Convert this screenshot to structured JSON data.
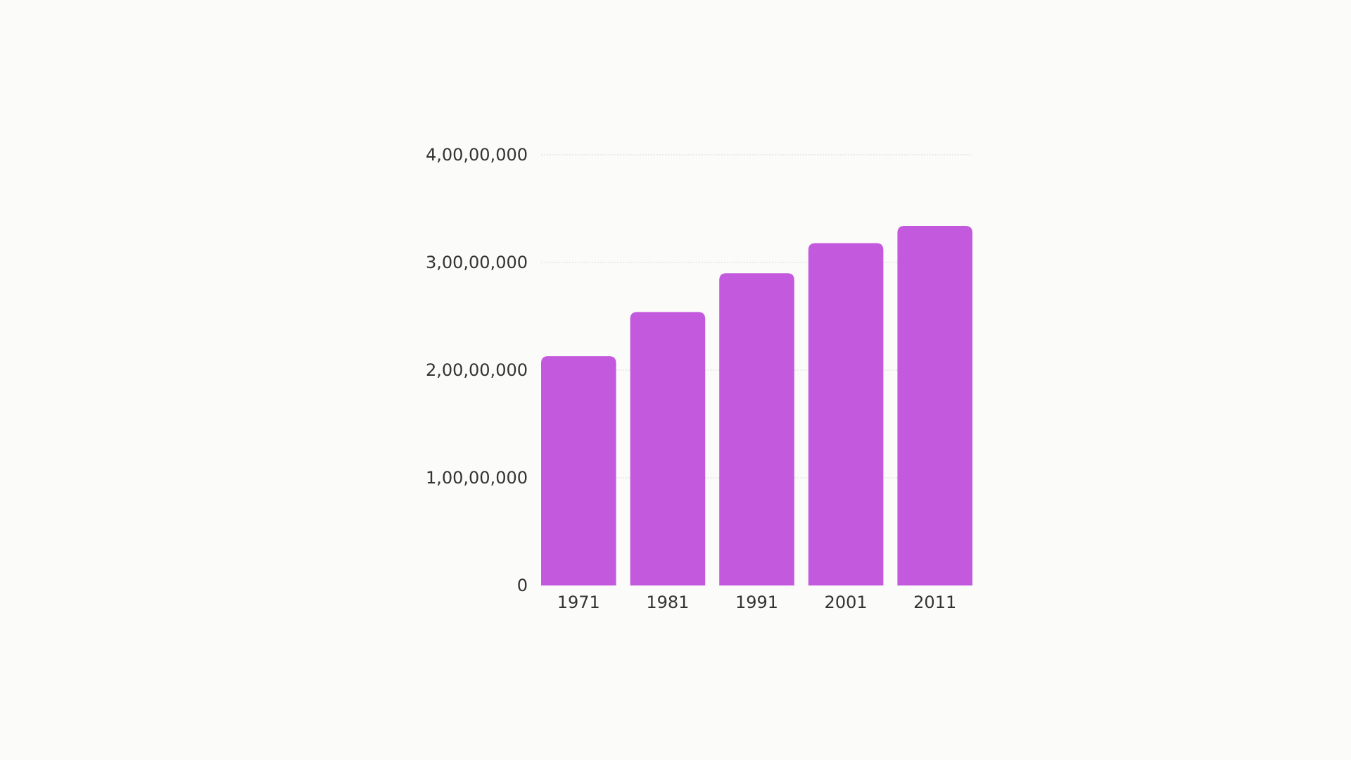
{
  "colors": {
    "background": "#fbfbfa",
    "bar": "#c35add",
    "gridline": "#d9d9d4",
    "text": "#333333"
  },
  "chart_data": {
    "type": "bar",
    "title": "",
    "xlabel": "",
    "ylabel": "",
    "categories": [
      "1971",
      "1981",
      "1991",
      "2001",
      "2011"
    ],
    "values": [
      21300000,
      25400000,
      29000000,
      31800000,
      33400000
    ],
    "ylim": [
      0,
      40000000
    ],
    "yticks": [
      0,
      10000000,
      20000000,
      30000000,
      40000000
    ],
    "ytick_labels": [
      "0",
      "1,00,00,000",
      "2,00,00,000",
      "3,00,00,000",
      "4,00,00,000"
    ],
    "grid": true,
    "legend": "none"
  }
}
